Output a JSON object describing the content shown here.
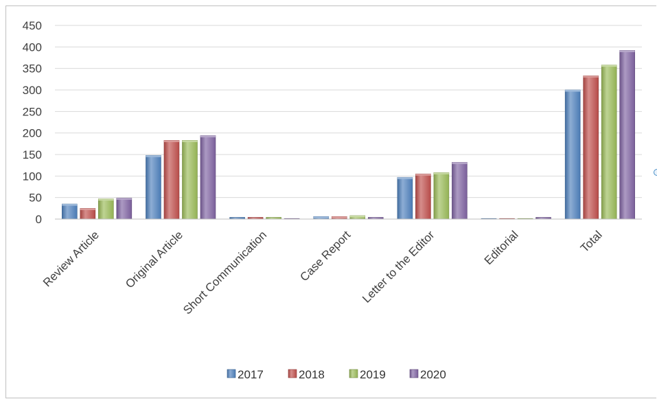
{
  "chart_data": {
    "type": "bar",
    "categories": [
      "Review Article",
      "Original Article",
      "Short Communication",
      "Case Report",
      "Letter to the Editor",
      "Editorial",
      "Total"
    ],
    "series": [
      {
        "name": "2017",
        "color": "#4f81bd",
        "values": [
          35,
          148,
          4,
          6,
          97,
          1,
          300
        ]
      },
      {
        "name": "2018",
        "color": "#c0504d",
        "values": [
          25,
          183,
          4,
          6,
          105,
          1,
          333
        ]
      },
      {
        "name": "2019",
        "color": "#9bbb59",
        "values": [
          47,
          183,
          4,
          8,
          108,
          0,
          358
        ]
      },
      {
        "name": "2020",
        "color": "#8064a2",
        "values": [
          49,
          194,
          1,
          4,
          132,
          4,
          392
        ]
      }
    ],
    "yticks": [
      0,
      50,
      100,
      150,
      200,
      250,
      300,
      350,
      400,
      450
    ],
    "ylim": [
      0,
      450
    ],
    "grid": true,
    "legend_position": "bottom",
    "title": "",
    "xlabel": "",
    "ylabel": ""
  }
}
